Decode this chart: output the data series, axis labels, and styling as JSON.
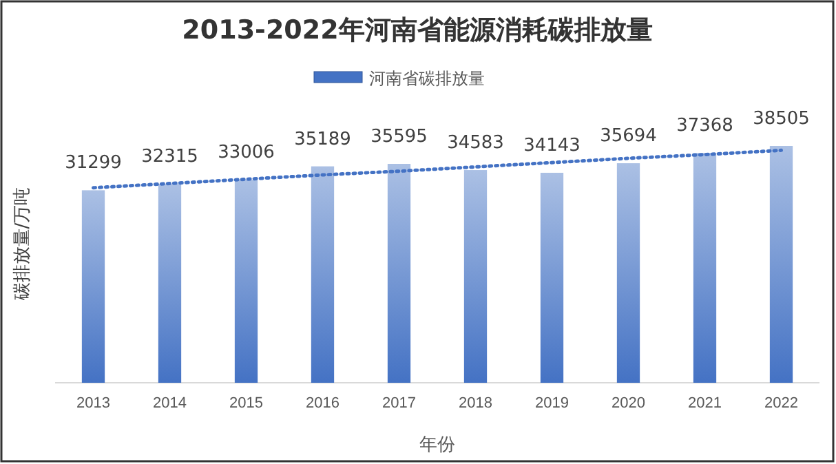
{
  "chart_data": {
    "type": "bar",
    "title": "2013-2022年河南省能源消耗碳排放量",
    "xlabel": "年份",
    "ylabel": "碳排放量/万吨",
    "categories": [
      "2013",
      "2014",
      "2015",
      "2016",
      "2017",
      "2018",
      "2019",
      "2020",
      "2021",
      "2022"
    ],
    "series": [
      {
        "name": "河南省碳排放量",
        "color": "#4472c4",
        "values": [
          31299,
          32315,
          33006,
          35189,
          35595,
          34583,
          34143,
          35694,
          37368,
          38505
        ],
        "value_labels": [
          "31299",
          "32315",
          "33006",
          "35189",
          "35595",
          "34583",
          "34143",
          "35694",
          "37368",
          "38505"
        ]
      },
      {
        "type": "line",
        "color": "#4472c4",
        "values": [
          31700,
          32400,
          33100,
          33800,
          34400,
          35100,
          35800,
          36500,
          37100,
          37800
        ],
        "line_style": "dotted",
        "marker": "none"
      }
    ],
    "tick_labels": "x",
    "legend": "top",
    "grid": false
  }
}
